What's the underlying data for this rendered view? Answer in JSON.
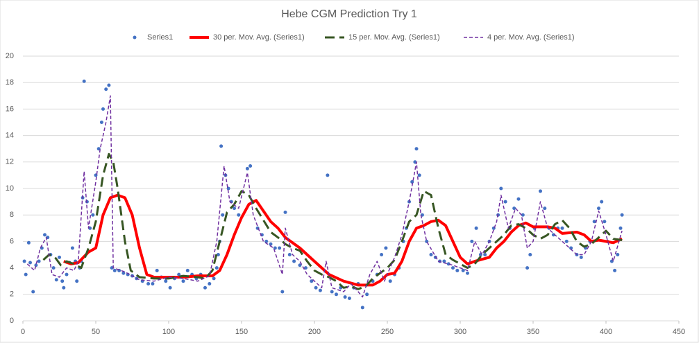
{
  "chart_data": {
    "type": "scatter",
    "title": "Hebe CGM Prediction Try 1",
    "xlim": [
      0,
      450
    ],
    "xticks": [
      0,
      50,
      100,
      150,
      200,
      250,
      300,
      350,
      400,
      450
    ],
    "ylim": [
      0,
      20
    ],
    "yticks": [
      0,
      2,
      4,
      6,
      8,
      10,
      12,
      14,
      16,
      18,
      20
    ],
    "grid": true,
    "legend": "top",
    "series": [
      {
        "name": "Series1",
        "color": "#4472c4",
        "mode": "markers",
        "x": [
          1,
          2,
          4,
          5,
          7,
          9,
          11,
          13,
          15,
          17,
          19,
          21,
          23,
          25,
          27,
          28,
          30,
          32,
          34,
          36,
          37,
          39,
          40,
          41,
          42,
          44,
          46,
          48,
          50,
          52,
          54,
          55,
          57,
          59,
          61,
          63,
          66,
          69,
          72,
          75,
          78,
          82,
          86,
          89,
          92,
          95,
          98,
          101,
          104,
          107,
          110,
          113,
          116,
          119,
          122,
          125,
          128,
          131,
          133,
          134,
          135,
          136,
          137,
          139,
          141,
          143,
          145,
          148,
          154,
          156,
          158,
          161,
          164,
          167,
          170,
          173,
          176,
          178,
          180,
          183,
          186,
          190,
          194,
          198,
          201,
          204,
          209,
          212,
          215,
          218,
          221,
          224,
          227,
          230,
          233,
          236,
          240,
          243,
          246,
          249,
          252,
          255,
          258,
          261,
          263,
          265,
          267,
          269,
          270,
          272,
          274,
          277,
          280,
          283,
          286,
          289,
          292,
          295,
          298,
          302,
          305,
          308,
          311,
          314,
          317,
          320,
          323,
          326,
          328,
          331,
          334,
          337,
          340,
          343,
          346,
          348,
          351,
          355,
          358,
          361,
          364,
          367,
          370,
          373,
          376,
          380,
          383,
          386,
          389,
          392,
          395,
          397,
          399,
          401,
          404,
          406,
          408,
          410,
          411
        ],
        "values": [
          4.5,
          3.5,
          5.9,
          4.4,
          2.2,
          4.2,
          4.5,
          5.5,
          6.5,
          6.3,
          5,
          4,
          3.1,
          4.8,
          3,
          2.5,
          3.5,
          4.4,
          5.5,
          4.5,
          3,
          4,
          4.5,
          9.3,
          18.1,
          9,
          7,
          8,
          11,
          13,
          15,
          16,
          17.5,
          17.8,
          4,
          3.8,
          3.8,
          3.6,
          3.5,
          3.4,
          3.2,
          3,
          2.8,
          2.8,
          3.8,
          3.3,
          3,
          2.5,
          3.2,
          3.5,
          3,
          3.8,
          3.5,
          3.2,
          3.5,
          2.5,
          2.8,
          3.2,
          4,
          5,
          6,
          13.2,
          8,
          11,
          10,
          9,
          8.5,
          8,
          11.5,
          11.7,
          9,
          7,
          6.5,
          6,
          5.8,
          5.5,
          5.5,
          2.2,
          8.2,
          5,
          4.5,
          4.2,
          4,
          3,
          2.5,
          2.3,
          11,
          2.2,
          2,
          2.5,
          1.8,
          1.7,
          2.5,
          2.8,
          1,
          2,
          3,
          3.5,
          5,
          5.5,
          3,
          3.5,
          4,
          6,
          7,
          9,
          10.5,
          12,
          13,
          11,
          8,
          6,
          5,
          4.8,
          4.5,
          4.5,
          4.3,
          4,
          3.8,
          3.8,
          3.6,
          6,
          7,
          5,
          5,
          6,
          7,
          8,
          10,
          9,
          7,
          8.5,
          9.2,
          8,
          4,
          5,
          7,
          9.8,
          8.5,
          7,
          6.5,
          7,
          7,
          6,
          5.5,
          5,
          4.8,
          5.5,
          6,
          7.5,
          8.5,
          9,
          7.5,
          6,
          4.5,
          3.8,
          5,
          7,
          8
        ]
      },
      {
        "name": "30 per. Mov. Avg. (Series1)",
        "color": "#ff0000",
        "mode": "line",
        "width": 4,
        "dash": "none",
        "x": [
          28,
          33,
          38,
          45,
          50,
          55,
          60,
          65,
          70,
          75,
          80,
          85,
          90,
          100,
          110,
          120,
          130,
          135,
          140,
          145,
          150,
          155,
          160,
          165,
          170,
          175,
          180,
          190,
          195,
          200,
          210,
          220,
          230,
          240,
          245,
          250,
          255,
          260,
          265,
          270,
          275,
          280,
          285,
          290,
          295,
          300,
          305,
          310,
          320,
          325,
          330,
          335,
          340,
          345,
          350,
          360,
          365,
          370,
          380,
          385,
          390,
          395,
          400,
          405,
          411
        ],
        "values": [
          4.5,
          4.3,
          4.4,
          5.2,
          5.5,
          8,
          9.3,
          9.5,
          9.3,
          8,
          5.5,
          3.5,
          3.3,
          3.3,
          3.3,
          3.4,
          3.4,
          3.8,
          5,
          6.5,
          7.8,
          8.8,
          9.1,
          8.3,
          7.5,
          7,
          6.3,
          5.5,
          5,
          4.5,
          3.5,
          3,
          2.7,
          2.7,
          3,
          3.5,
          3.6,
          4.5,
          6,
          7,
          7.2,
          7.5,
          7.6,
          7.2,
          6,
          4.8,
          4.3,
          4.5,
          4.8,
          5.5,
          6,
          6.7,
          7.2,
          7.4,
          7.1,
          7.1,
          7,
          6.6,
          6.7,
          6.5,
          6,
          6.1,
          6,
          5.9,
          6.2
        ]
      },
      {
        "name": "15 per. Mov. Avg. (Series1)",
        "color": "#375623",
        "mode": "line",
        "width": 3,
        "dash": "14 7",
        "x": [
          14,
          18,
          22,
          26,
          30,
          35,
          40,
          45,
          50,
          55,
          59,
          62,
          65,
          70,
          74,
          80,
          90,
          100,
          110,
          120,
          125,
          130,
          135,
          140,
          145,
          150,
          155,
          160,
          165,
          170,
          175,
          180,
          185,
          190,
          195,
          200,
          205,
          210,
          215,
          220,
          225,
          230,
          235,
          240,
          245,
          250,
          255,
          260,
          265,
          270,
          275,
          280,
          285,
          290,
          295,
          300,
          305,
          310,
          315,
          320,
          325,
          330,
          335,
          340,
          345,
          350,
          355,
          360,
          365,
          370,
          375,
          380,
          385,
          390,
          395,
          400,
          405,
          411
        ],
        "values": [
          4.6,
          5,
          4.8,
          4.2,
          4.5,
          4.3,
          4,
          5.5,
          7.5,
          11,
          12.6,
          12,
          10,
          6,
          3.8,
          3.3,
          3.2,
          3.2,
          3.4,
          3.3,
          3.2,
          3.8,
          6,
          8.2,
          8.8,
          9.8,
          9.5,
          8.5,
          7.6,
          6.7,
          6.3,
          5.8,
          5.5,
          5.3,
          4.5,
          3.8,
          3.5,
          3.3,
          3,
          2.5,
          2.6,
          2.4,
          2.6,
          3.2,
          3.6,
          4,
          4.6,
          6,
          7.5,
          8,
          9.8,
          9.5,
          7,
          5,
          4.6,
          4.3,
          4,
          4.3,
          5,
          5.5,
          6,
          6.5,
          7.2,
          7.3,
          7,
          6.5,
          6.2,
          6.5,
          7.3,
          7.6,
          7,
          6,
          5.6,
          5.8,
          6.3,
          6.8,
          6.2,
          6.1
        ]
      },
      {
        "name": "4 per. Mov. Avg. (Series1)",
        "color": "#7030a0",
        "mode": "line",
        "width": 1.5,
        "dash": "5 3",
        "x": [
          3,
          8,
          12,
          16,
          20,
          25,
          30,
          35,
          38,
          42,
          45,
          50,
          53,
          57,
          60,
          62,
          70,
          80,
          90,
          100,
          110,
          120,
          128,
          133,
          138,
          142,
          148,
          154,
          158,
          165,
          172,
          178,
          180,
          185,
          190,
          195,
          200,
          205,
          208,
          212,
          220,
          225,
          230,
          233,
          238,
          243,
          248,
          255,
          260,
          265,
          270,
          273,
          277,
          285,
          295,
          305,
          310,
          315,
          320,
          325,
          328,
          333,
          338,
          342,
          346,
          350,
          355,
          360,
          365,
          370,
          375,
          380,
          385,
          390,
          395,
          400,
          405,
          411
        ],
        "values": [
          4.3,
          3.8,
          5.5,
          6.3,
          3.5,
          3.3,
          4,
          3.8,
          4.5,
          11.3,
          7,
          10.5,
          13,
          15,
          17,
          4,
          3.7,
          3.1,
          3,
          3.3,
          3.2,
          3,
          3.4,
          6,
          11.7,
          9,
          8.5,
          11.2,
          8,
          6,
          5.5,
          3.5,
          7,
          5,
          4.5,
          3.5,
          3,
          2.5,
          4.5,
          2.5,
          2.2,
          2.8,
          2.2,
          1.8,
          3.5,
          4.5,
          3,
          4.8,
          6.5,
          9,
          12,
          8,
          6,
          4.5,
          4.2,
          3.8,
          6,
          5,
          6,
          7.5,
          9.5,
          7,
          8.5,
          8,
          5.5,
          6,
          9,
          7,
          6.5,
          6,
          5.5,
          5,
          5,
          6,
          8.3,
          6.5,
          4.5,
          6.8
        ]
      }
    ]
  }
}
